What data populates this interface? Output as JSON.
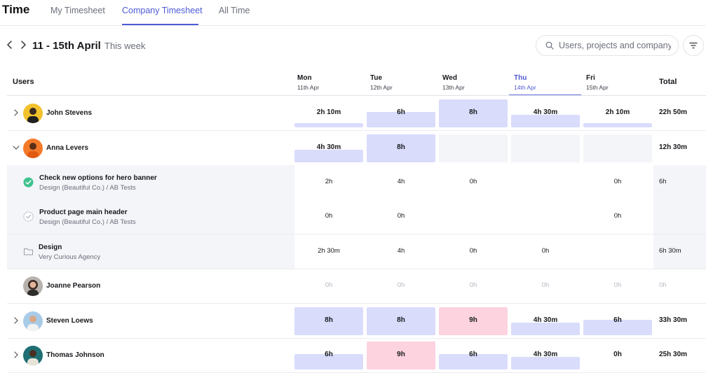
{
  "app": {
    "title": "Time"
  },
  "tabs": [
    {
      "label": "My Timesheet",
      "active": false
    },
    {
      "label": "Company Timesheet",
      "active": true
    },
    {
      "label": "All Time",
      "active": false
    }
  ],
  "week": {
    "range": "11 - 15th April",
    "subtitle": "This week"
  },
  "search": {
    "placeholder": "Users, projects and company"
  },
  "columns": {
    "users": "Users",
    "total": "Total",
    "days": [
      {
        "name": "Mon",
        "date": "11th Apr"
      },
      {
        "name": "Tue",
        "date": "12th Apr"
      },
      {
        "name": "Wed",
        "date": "13th Apr"
      },
      {
        "name": "Thu",
        "date": "14th Apr"
      },
      {
        "name": "Fri",
        "date": "15th Apr"
      }
    ]
  },
  "colors": {
    "accent": "#4f5bd5",
    "bar": "#d9dcfb",
    "overtime": "#fcd3df",
    "empty": "#f4f5f8",
    "check": "#3ec28f"
  },
  "rows": [
    {
      "name": "John Stevens",
      "cells": [
        "2h 10m",
        "6h",
        "8h",
        "4h 30m",
        "2h 10m"
      ],
      "total": "22h 50m"
    },
    {
      "name": "Anna Levers",
      "cells": [
        "4h 30m",
        "8h",
        "",
        "",
        ""
      ],
      "total": "12h 30m"
    },
    {
      "title": "Check new options for hero banner",
      "meta": "Design (Beautiful Co.)  /  AB Tests",
      "cells": [
        "2h",
        "4h",
        "0h",
        "",
        "0h"
      ],
      "total": "6h"
    },
    {
      "title": "Product page main header",
      "meta": "Design (Beautiful Co.)  /  AB Tests",
      "cells": [
        "0h",
        "0h",
        "",
        "",
        "0h"
      ],
      "total": ""
    },
    {
      "title": "Design",
      "meta": "Very Curious Agency",
      "cells": [
        "2h 30m",
        "4h",
        "0h",
        "0h",
        ""
      ],
      "total": "6h 30m"
    },
    {
      "name": "Joanne Pearson",
      "cells": [
        "0h",
        "0h",
        "0h",
        "0h",
        "0h"
      ],
      "total": "0h"
    },
    {
      "name": "Steven Loews",
      "cells": [
        "8h",
        "8h",
        "9h",
        "4h 30m",
        "6h"
      ],
      "total": "33h 30m"
    },
    {
      "name": "Thomas Johnson",
      "cells": [
        "6h",
        "9h",
        "6h",
        "4h 30m",
        "0h"
      ],
      "total": "25h 30m"
    }
  ]
}
